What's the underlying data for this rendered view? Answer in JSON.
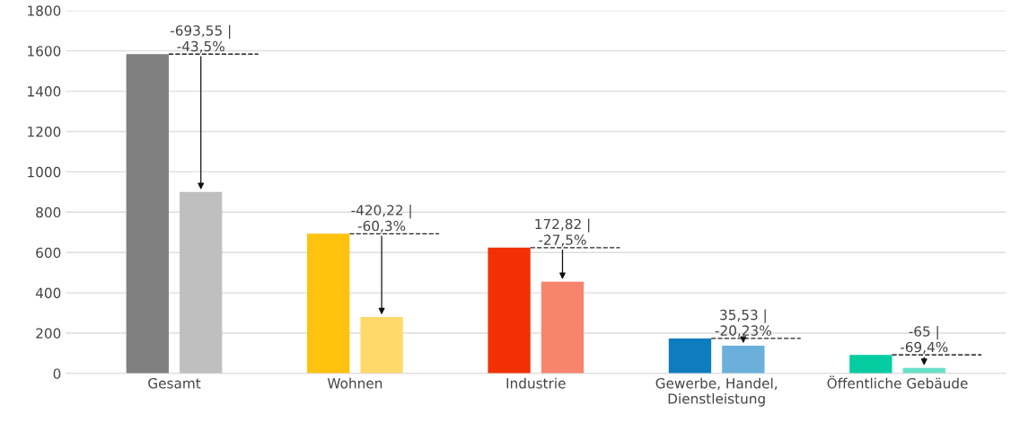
{
  "chart_data": {
    "type": "bar",
    "categories": [
      "Gesamt",
      "Wohnen",
      "Industrie",
      "Gewerbe, Handel,\nDienstleistung",
      "Öffentliche Gebäude"
    ],
    "series": [
      {
        "colors": [
          "#808080",
          "#ffc20e",
          "#f23005",
          "#0f7cbf",
          "#05cca1"
        ],
        "values": [
          1584,
          693,
          624,
          174,
          92
        ]
      },
      {
        "colors": [
          "#bfbfbf",
          "#ffd96b",
          "#f6856c",
          "#6bb0dc",
          "#68e0c6"
        ],
        "values": [
          900,
          280,
          455,
          138,
          28
        ]
      }
    ],
    "ylim": [
      0,
      1800
    ],
    "yticks": [
      0,
      200,
      400,
      600,
      800,
      1000,
      1200,
      1400,
      1600,
      1800
    ],
    "grid": "y",
    "legend": false,
    "annotations": [
      "-693,55 |\n-43,5%",
      "-420,22 |\n-60,3%",
      "172,82 |\n-27,5%",
      "35,53 |\n-20,23%",
      "-65 |\n-69,4%"
    ]
  }
}
